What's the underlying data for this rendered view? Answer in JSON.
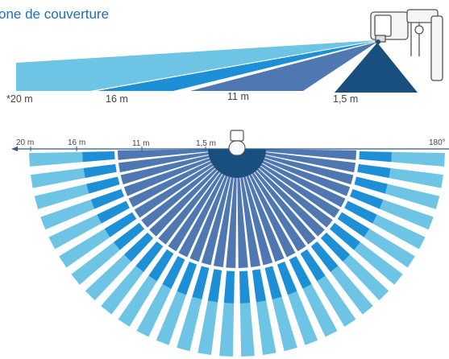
{
  "title": "one de couverture",
  "side_view": {
    "labels": [
      "*20 m",
      "16 m",
      "11 m",
      "1,5 m"
    ]
  },
  "top_view": {
    "labels": [
      "20 m",
      "16 m",
      "11 m",
      "1,5 m"
    ],
    "angle_label": "180°",
    "rays": 30
  },
  "colors": {
    "zone_20m": "#6ec4e4",
    "zone_16m": "#1d8fd6",
    "zone_11m": "#4f78b2",
    "zone_1_5m": "#184f7f",
    "title": "#1f6db5",
    "axis": "#2c5a8a"
  },
  "icons": [
    "motion-sensor-icon",
    "sensor-top-icon"
  ]
}
